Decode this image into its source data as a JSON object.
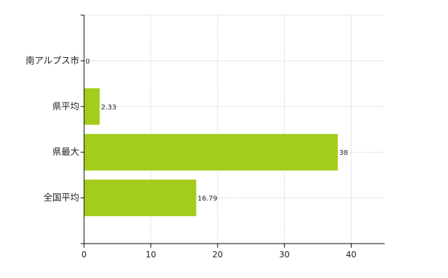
{
  "chart_data": {
    "type": "bar",
    "orientation": "horizontal",
    "categories": [
      "南アルプス市",
      "県平均",
      "県最大",
      "全国平均"
    ],
    "values": [
      0,
      2.33,
      38,
      16.79
    ],
    "data_labels": [
      "0",
      "2.33",
      "38",
      "16.79"
    ],
    "title": "",
    "xlabel": "",
    "ylabel": "",
    "xlim": [
      0,
      45
    ],
    "xticks": [
      0,
      10,
      20,
      30,
      40
    ],
    "grid": "dotted",
    "legend": "none",
    "colors": {
      "bar": "#a3cc1c",
      "grid": "#cccccc",
      "axis": "#000000"
    }
  }
}
